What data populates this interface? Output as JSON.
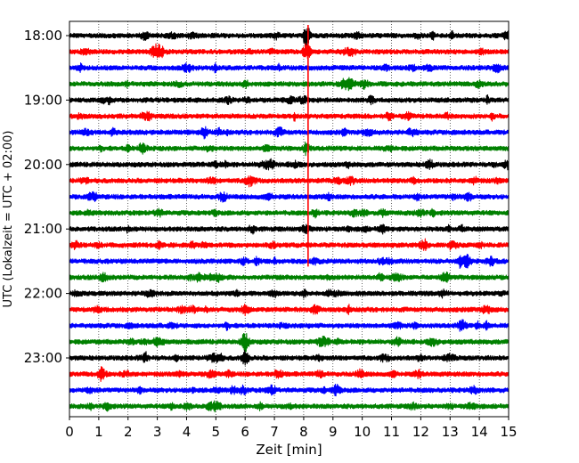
{
  "chart_data": {
    "type": "line",
    "title": "",
    "xlabel": "Zeit  [min]",
    "ylabel": "UTC (Lokalzeit = UTC + 02:00)",
    "xlim": [
      0,
      15
    ],
    "x_ticks": [
      "0",
      "1",
      "2",
      "3",
      "4",
      "5",
      "6",
      "7",
      "8",
      "9",
      "10",
      "11",
      "12",
      "13",
      "14",
      "15"
    ],
    "y_ticks": [
      {
        "label": "18:00",
        "trace": 0
      },
      {
        "label": "19:00",
        "trace": 4
      },
      {
        "label": "20:00",
        "trace": 8
      },
      {
        "label": "21:00",
        "trace": 12
      },
      {
        "label": "22:00",
        "trace": 16
      },
      {
        "label": "23:00",
        "trace": 20
      }
    ],
    "grid": true,
    "trace_interval_minutes": 15,
    "trace_start": "18:00",
    "trace_count": 24,
    "trace_colors": [
      "#000000",
      "#ff0000",
      "#0000ff",
      "#008000"
    ],
    "events": [
      {
        "trace": 0,
        "x": 8.1,
        "amp": 3.2
      },
      {
        "trace": 1,
        "x": 8.1,
        "amp": 2.6
      },
      {
        "trace": 1,
        "x": 3.0,
        "amp": 1.5
      },
      {
        "trace": 6,
        "x": 4.6,
        "amp": 1.6
      },
      {
        "trace": 8,
        "x": 12.3,
        "amp": 1.5
      },
      {
        "trace": 13,
        "x": 12.1,
        "amp": 1.8
      },
      {
        "trace": 14,
        "x": 13.6,
        "amp": 1.8
      },
      {
        "trace": 17,
        "x": 6.0,
        "amp": 1.4
      },
      {
        "trace": 18,
        "x": 13.4,
        "amp": 1.7
      },
      {
        "trace": 19,
        "x": 6.0,
        "amp": 3.4
      },
      {
        "trace": 19,
        "x": 11.2,
        "amp": 1.3
      },
      {
        "trace": 20,
        "x": 6.0,
        "amp": 2.2
      },
      {
        "trace": 20,
        "x": 5.1,
        "amp": 1.4
      },
      {
        "trace": 21,
        "x": 1.1,
        "amp": 2.4
      },
      {
        "trace": 22,
        "x": 9.1,
        "amp": 1.7
      },
      {
        "trace": 23,
        "x": 4.8,
        "amp": 1.5
      },
      {
        "trace": 23,
        "x": 1.3,
        "amp": 1.2
      }
    ],
    "vertical_marker": {
      "x": 8.15,
      "trace_from": 0,
      "trace_to": 14,
      "color": "#ff0000"
    }
  }
}
